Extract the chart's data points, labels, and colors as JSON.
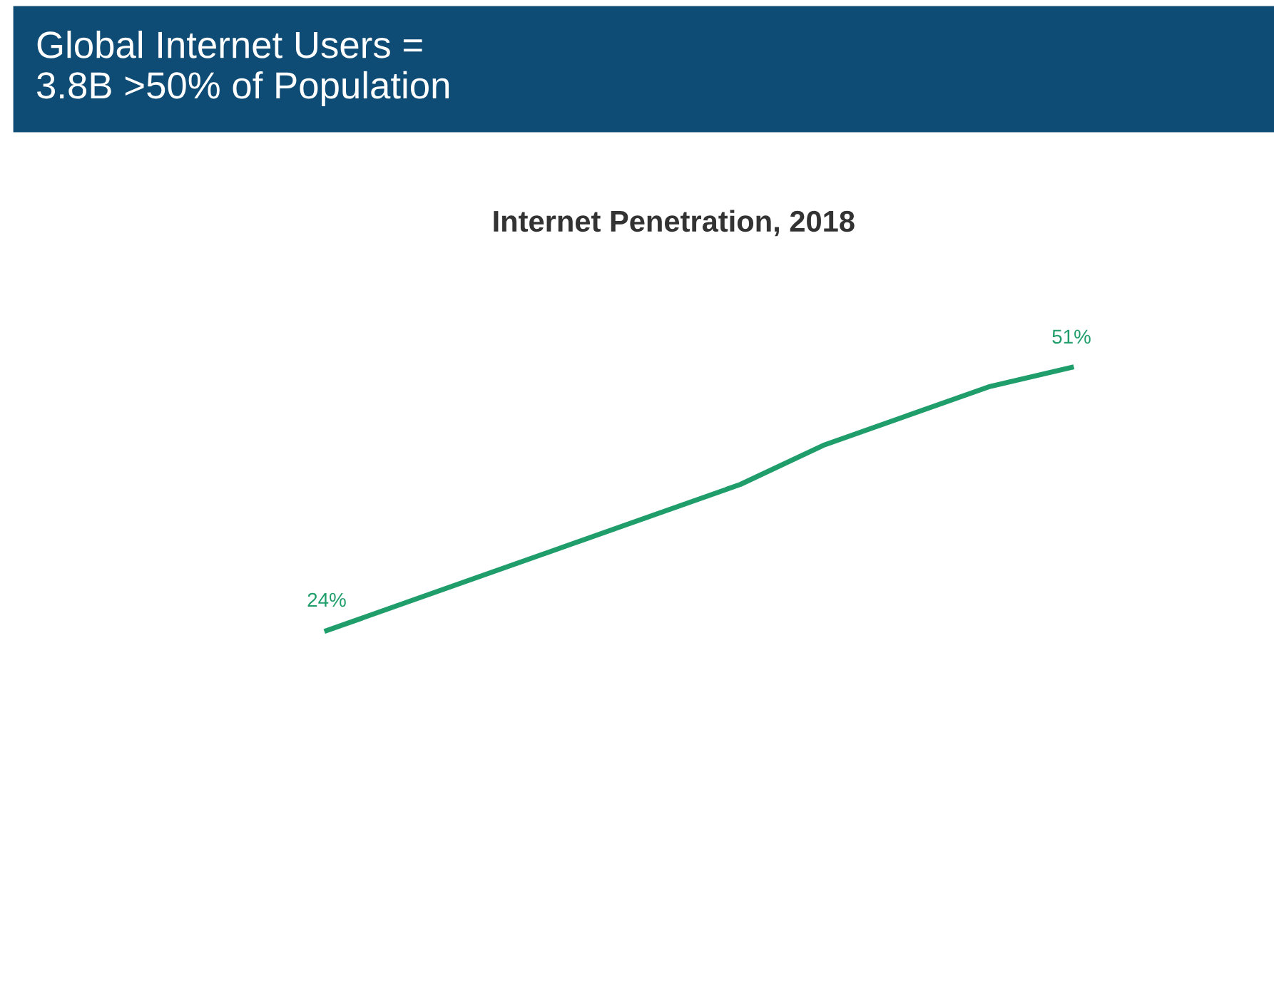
{
  "chart_data": {
    "type": "line",
    "title": "Global Internet Users =\n3.8B >50% of Population",
    "subtitle": "Internet Penetration, 2018",
    "categories": [
      null,
      null,
      null,
      null,
      null,
      null,
      null,
      null,
      null,
      null
    ],
    "series": [
      {
        "color": "#1f9e6b",
        "values": [
          24,
          27,
          30,
          33,
          36,
          39,
          43,
          46,
          49,
          51
        ],
        "value_labels": [
          "24%",
          null,
          null,
          null,
          null,
          null,
          null,
          null,
          null,
          "51%"
        ]
      }
    ],
    "grid": false,
    "legend": false,
    "marker": "none",
    "line_style": "solid"
  }
}
